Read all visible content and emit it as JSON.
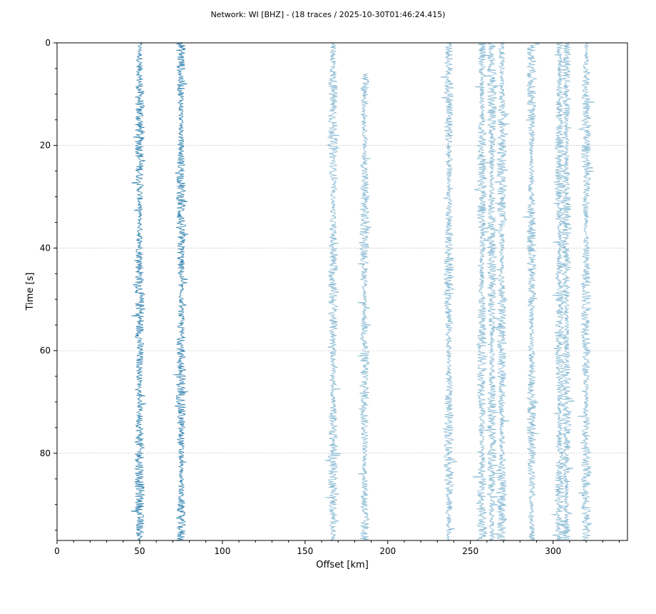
{
  "chart_data": {
    "type": "seismic-section",
    "title": "Network: WI [BHZ] - (18 traces / 2025-10-30T01:46:24.415)",
    "xlabel": "Offset [km]",
    "ylabel": "Time [s]",
    "xlim": [
      0,
      345
    ],
    "ylim": [
      97,
      0
    ],
    "y_inverted": true,
    "xticks": [
      0,
      50,
      100,
      150,
      200,
      250,
      300
    ],
    "yticks": [
      0,
      20,
      40,
      60,
      80
    ],
    "grid": "horizontal dashed",
    "colors": {
      "dark": "#1f77a8",
      "light": "#7fb4cf"
    },
    "traces": [
      {
        "offset": 50,
        "start": 0,
        "end": 97,
        "color": "dark"
      },
      {
        "offset": 75,
        "start": 0,
        "end": 97,
        "color": "dark"
      },
      {
        "offset": 167,
        "start": 0,
        "end": 97,
        "color": "light"
      },
      {
        "offset": 186,
        "start": 6,
        "end": 97,
        "color": "light"
      },
      {
        "offset": 237,
        "start": 0,
        "end": 97,
        "color": "light"
      },
      {
        "offset": 257,
        "start": 0,
        "end": 97,
        "color": "light"
      },
      {
        "offset": 263,
        "start": 0,
        "end": 97,
        "color": "light"
      },
      {
        "offset": 269,
        "start": 0,
        "end": 97,
        "color": "light"
      },
      {
        "offset": 287,
        "start": 0,
        "end": 97,
        "color": "light"
      },
      {
        "offset": 304,
        "start": 0,
        "end": 97,
        "color": "light"
      },
      {
        "offset": 308,
        "start": 0,
        "end": 97,
        "color": "light"
      },
      {
        "offset": 320,
        "start": 0,
        "end": 97,
        "color": "light"
      }
    ]
  }
}
